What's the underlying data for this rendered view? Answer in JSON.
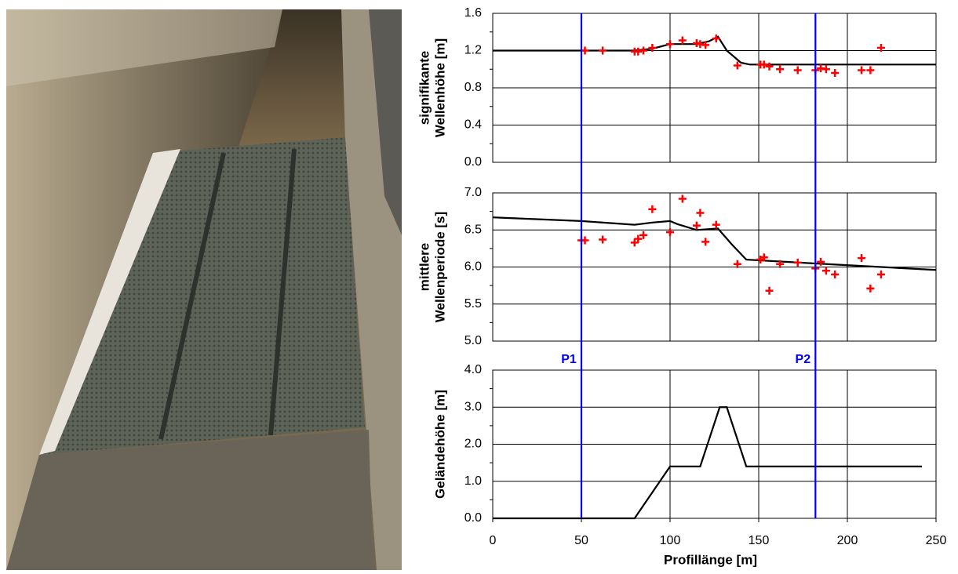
{
  "chart_data": [
    {
      "type": "line",
      "ylabel": [
        "signifikante",
        "Wellenhöhe [m]"
      ],
      "xlim": [
        0,
        250
      ],
      "xticks": [
        0,
        50,
        100,
        150,
        200,
        250
      ],
      "ylim": [
        0,
        1.6
      ],
      "yticks": [
        {
          "value": 0,
          "label": "0.0"
        },
        0.4,
        0.8,
        1.2,
        1.6
      ],
      "grid": true,
      "series": [
        {
          "style": "line",
          "color": "#000000",
          "x": [
            0,
            80,
            90,
            100,
            115,
            122,
            127,
            132,
            140,
            145,
            250
          ],
          "values": [
            1.2,
            1.2,
            1.22,
            1.27,
            1.27,
            1.3,
            1.35,
            1.2,
            1.07,
            1.05,
            1.05
          ]
        },
        {
          "style": "marker",
          "color": "#ff0000",
          "x": [
            52,
            62,
            80,
            82,
            85,
            90,
            100,
            107,
            115,
            117,
            120,
            126,
            138,
            151,
            153,
            156,
            162,
            172,
            182,
            185,
            188,
            193,
            208,
            213,
            219
          ],
          "values": [
            1.2,
            1.2,
            1.19,
            1.19,
            1.2,
            1.23,
            1.27,
            1.31,
            1.28,
            1.27,
            1.26,
            1.33,
            1.04,
            1.05,
            1.05,
            1.03,
            1.0,
            0.99,
            0.99,
            1.01,
            1.0,
            0.96,
            0.99,
            0.99,
            1.23
          ]
        }
      ]
    },
    {
      "type": "line",
      "ylabel": [
        "mittlere",
        "Wellenperiode [s]"
      ],
      "xlim": [
        0,
        250
      ],
      "xticks": [
        0,
        50,
        100,
        150,
        200,
        250
      ],
      "ylim": [
        5,
        7
      ],
      "yticks": [
        {
          "value": 5,
          "label": "5.0"
        },
        5.5,
        {
          "value": 6,
          "label": "6.0"
        },
        6.5,
        {
          "value": 7,
          "label": "7.0"
        }
      ],
      "grid": true,
      "series": [
        {
          "style": "line",
          "color": "#000000",
          "x": [
            0,
            50,
            80,
            90,
            100,
            104,
            115,
            127,
            135,
            143,
            180,
            250
          ],
          "values": [
            6.67,
            6.62,
            6.57,
            6.6,
            6.62,
            6.58,
            6.5,
            6.52,
            6.3,
            6.1,
            6.05,
            5.96
          ]
        },
        {
          "style": "marker",
          "color": "#ff0000",
          "x": [
            50,
            52,
            62,
            80,
            82,
            85,
            90,
            100,
            107,
            115,
            117,
            120,
            126,
            138,
            151,
            153,
            156,
            162,
            172,
            182,
            185,
            188,
            193,
            208,
            213,
            219
          ],
          "values": [
            6.36,
            6.36,
            6.37,
            6.33,
            6.38,
            6.43,
            6.78,
            6.47,
            6.92,
            6.56,
            6.73,
            6.34,
            6.57,
            6.04,
            6.1,
            6.13,
            5.68,
            6.04,
            6.06,
            5.98,
            6.07,
            5.95,
            5.9,
            6.12,
            5.71,
            5.9
          ]
        }
      ]
    },
    {
      "type": "line",
      "ylabel": [
        "Geländehöhe [m]"
      ],
      "xlabel": "Profillänge [m]",
      "xlim": [
        0,
        250
      ],
      "xticks": [
        0,
        50,
        100,
        150,
        200,
        250
      ],
      "ylim": [
        0,
        4
      ],
      "yticks": [
        {
          "value": 0,
          "label": "0.0"
        },
        {
          "value": 1,
          "label": "1.0"
        },
        {
          "value": 2,
          "label": "2.0"
        },
        {
          "value": 3,
          "label": "3.0"
        },
        {
          "value": 4,
          "label": "4.0"
        }
      ],
      "grid": true,
      "series": [
        {
          "style": "line",
          "color": "#000000",
          "x": [
            0,
            80,
            100,
            117,
            128,
            132,
            143,
            242
          ],
          "values": [
            0,
            0,
            1.4,
            1.4,
            3.0,
            3.0,
            1.4,
            1.4
          ]
        }
      ]
    }
  ],
  "markers": [
    {
      "label": "P1",
      "x": 50,
      "color": "#0000ff"
    },
    {
      "label": "P2",
      "x": 182,
      "color": "#0000ff"
    }
  ]
}
